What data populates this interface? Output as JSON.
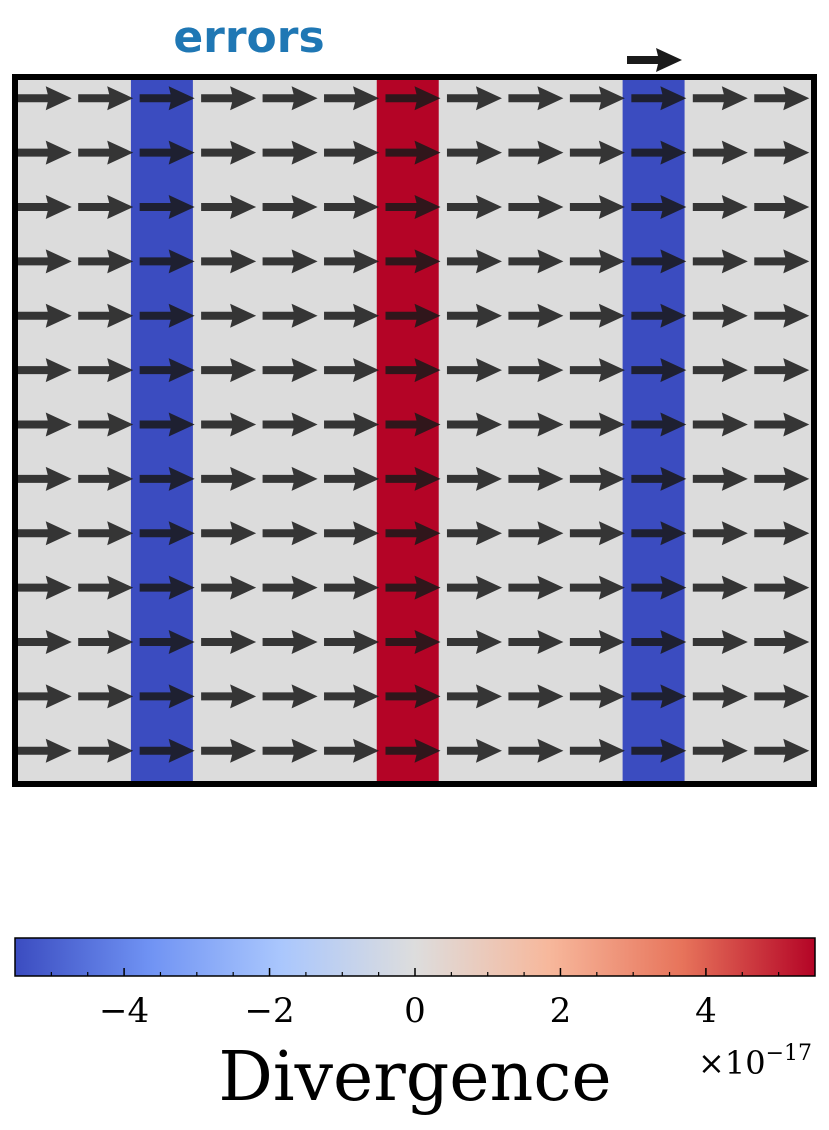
{
  "chart_data": {
    "type": "heatmap",
    "title": "errors",
    "title_color": "#1f77b4",
    "plot": {
      "background_color": "#dcdcdc",
      "frame_color": "#000000",
      "x_range": [
        0,
        13
      ],
      "y_range": [
        0,
        13
      ]
    },
    "field_columns": [
      {
        "column": 2,
        "value": -5.5e-17,
        "color": "#3b4cc0"
      },
      {
        "column": 6,
        "value": 5.5e-17,
        "color": "#b40426"
      },
      {
        "column": 10,
        "value": -5.5e-17,
        "color": "#3b4cc0"
      }
    ],
    "vector_field": {
      "direction": "positive-x",
      "rows": 13,
      "cols": 13,
      "arrow_color": "#1a1a1a",
      "key_arrow": true
    },
    "colorbar": {
      "label": "Divergence",
      "orientation": "horizontal",
      "placement": "bottom",
      "colormap": "coolwarm",
      "colors": [
        "#3b4cc0",
        "#6f92f3",
        "#aac7fd",
        "#dddddd",
        "#f7b89c",
        "#e7745b",
        "#b40426"
      ],
      "vmin": -5.5,
      "vmax": 5.5,
      "ticks": [
        -4,
        -2,
        0,
        2,
        4
      ],
      "tick_labels": [
        "−4",
        "−2",
        "0",
        "2",
        "4"
      ],
      "minor_ticks": [
        -5,
        -4.5,
        -3.5,
        -3,
        -2.5,
        -1.5,
        -1,
        -0.5,
        0.5,
        1,
        1.5,
        2.5,
        3,
        3.5,
        4.5,
        5
      ],
      "scale_prefix": "×10",
      "scale_exponent": "−17"
    }
  }
}
